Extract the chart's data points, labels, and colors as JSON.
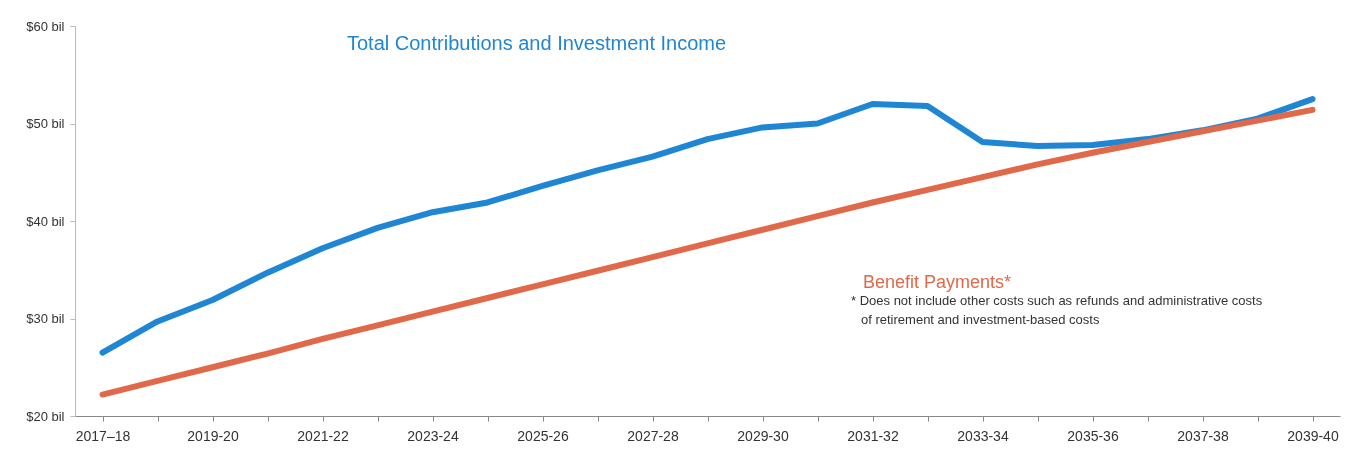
{
  "chart_data": {
    "type": "line",
    "categories": [
      "2017–18",
      null,
      "2019-20",
      null,
      "2021-22",
      null,
      "2023-24",
      null,
      "2025-26",
      null,
      "2027-28",
      null,
      "2029-30",
      null,
      "2031-32",
      null,
      "2033-34",
      null,
      "2035-36",
      null,
      "2037-38",
      null,
      "2039-40"
    ],
    "series": [
      {
        "name": "Total Contributions and Investment Income",
        "color": "#1f86d4",
        "values": [
          26.5,
          29.7,
          31.9,
          34.7,
          37.2,
          39.3,
          40.9,
          41.9,
          43.6,
          45.2,
          46.6,
          48.4,
          49.6,
          50.0,
          52.0,
          51.8,
          48.1,
          47.7,
          47.8,
          48.4,
          49.3,
          50.5,
          52.5
        ]
      },
      {
        "name": "Benefit Payments*",
        "color": "#e0694a",
        "values": [
          22.2,
          23.6,
          25.0,
          26.4,
          27.9,
          29.3,
          30.7,
          32.1,
          33.5,
          34.9,
          36.3,
          37.7,
          39.1,
          40.5,
          41.9,
          43.2,
          44.5,
          45.8,
          47.0,
          48.1,
          49.2,
          50.3,
          51.4
        ]
      }
    ],
    "ylim": [
      20,
      60
    ],
    "yticks": [
      {
        "value": 20,
        "label": "$20 bil"
      },
      {
        "value": 30,
        "label": "$30 bil"
      },
      {
        "value": 40,
        "label": "$40 bil"
      },
      {
        "value": 50,
        "label": "$50 bil"
      },
      {
        "value": 60,
        "label": "$60 bil"
      }
    ],
    "grid": false,
    "legend": false,
    "marker": "none",
    "line_style": "solid",
    "annotations": [
      "* Does not include other costs such as refunds and administrative costs of retirement and investment-based costs"
    ]
  }
}
